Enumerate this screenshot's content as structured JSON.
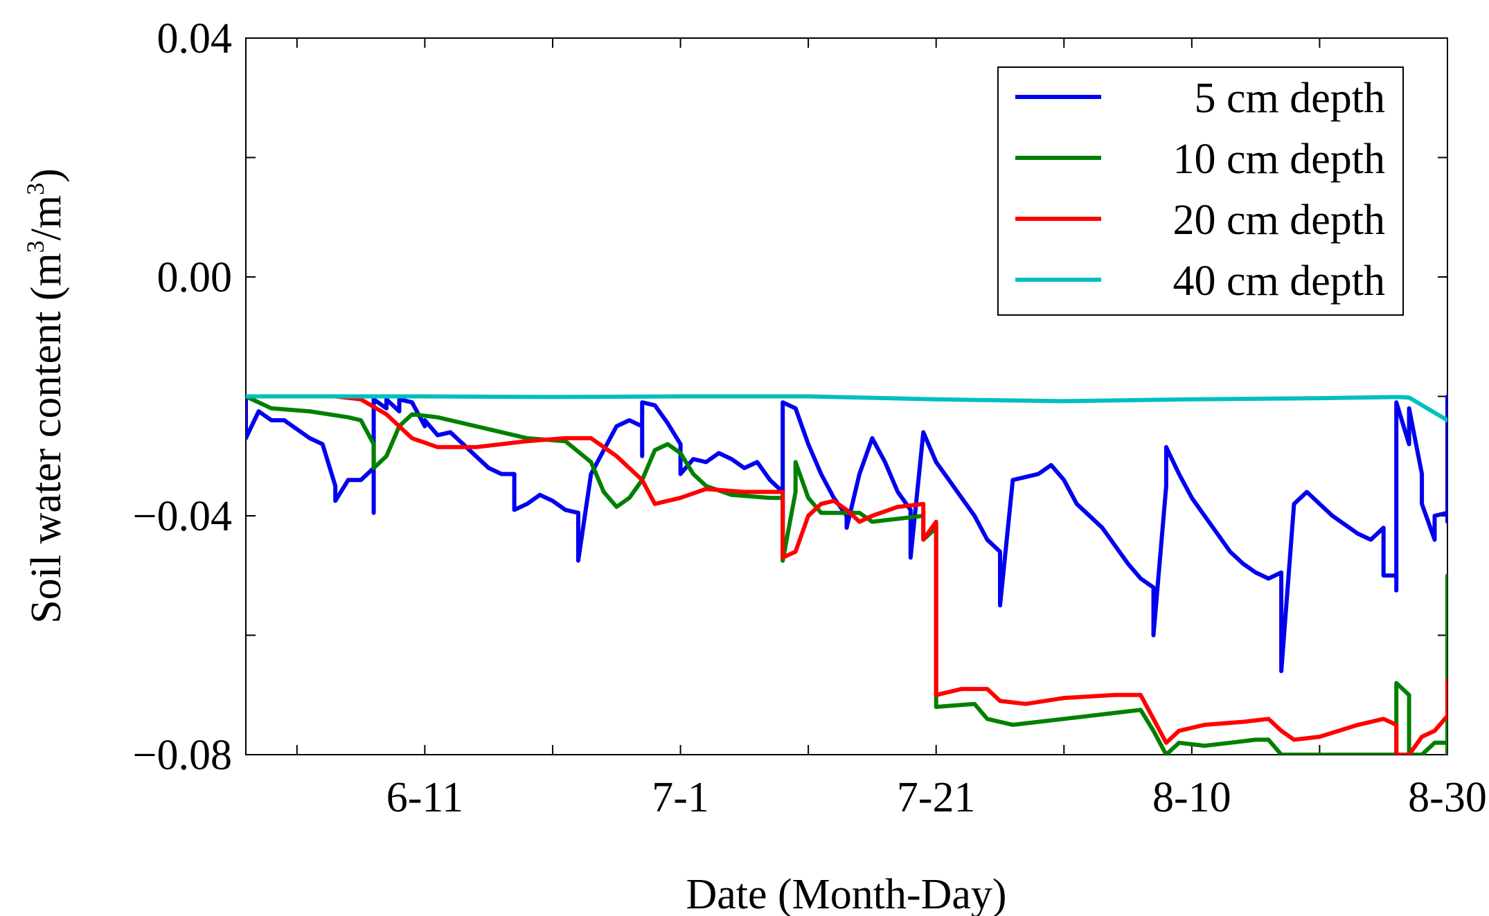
{
  "chart_data": {
    "type": "line",
    "title": "",
    "xlabel": "Date (Month-Day)",
    "ylabel_main": "Soil water content (m",
    "ylabel_sup1": "3",
    "ylabel_mid": "/m",
    "ylabel_sup2": "3",
    "ylabel_end": ")",
    "ylim": [
      -0.08,
      0.04
    ],
    "xlim": [
      "05-28",
      "08-30"
    ],
    "x_ticks": [
      {
        "date": "06-11",
        "label": "6-11"
      },
      {
        "date": "07-01",
        "label": "7-1"
      },
      {
        "date": "07-21",
        "label": "7-21"
      },
      {
        "date": "08-10",
        "label": "8-10"
      },
      {
        "date": "08-30",
        "label": "8-30"
      }
    ],
    "y_ticks": [
      {
        "value": 0.04,
        "label": "0.04"
      },
      {
        "value": 0.0,
        "label": "0.00"
      },
      {
        "value": -0.04,
        "label": "−0.04"
      },
      {
        "value": -0.08,
        "label": "−0.08"
      }
    ],
    "grid": false,
    "legend_position": "top-right",
    "series": [
      {
        "name": "5 cm depth",
        "color": "#0000ee",
        "points": [
          [
            "05-28",
            -0.02
          ],
          [
            "05-28",
            -0.027
          ],
          [
            "05-29",
            -0.0225
          ],
          [
            "05-30",
            -0.024
          ],
          [
            "05-31",
            -0.024
          ],
          [
            "06-01",
            -0.0255
          ],
          [
            "06-02",
            -0.027
          ],
          [
            "06-03",
            -0.028
          ],
          [
            "06-04",
            -0.035
          ],
          [
            "06-04",
            -0.0375
          ],
          [
            "06-05",
            -0.034
          ],
          [
            "06-06",
            -0.034
          ],
          [
            "06-07",
            -0.032
          ],
          [
            "06-07",
            -0.0395
          ],
          [
            "06-07",
            -0.0205
          ],
          [
            "06-08",
            -0.022
          ],
          [
            "06-08",
            -0.0205
          ],
          [
            "06-09",
            -0.0225
          ],
          [
            "06-09",
            -0.0205
          ],
          [
            "06-10",
            -0.021
          ],
          [
            "06-11",
            -0.025
          ],
          [
            "06-11",
            -0.024
          ],
          [
            "06-12",
            -0.0265
          ],
          [
            "06-13",
            -0.026
          ],
          [
            "06-14",
            -0.028
          ],
          [
            "06-15",
            -0.03
          ],
          [
            "06-16",
            -0.032
          ],
          [
            "06-17",
            -0.033
          ],
          [
            "06-18",
            -0.033
          ],
          [
            "06-18",
            -0.039
          ],
          [
            "06-19",
            -0.038
          ],
          [
            "06-20",
            -0.0365
          ],
          [
            "06-21",
            -0.0375
          ],
          [
            "06-22",
            -0.039
          ],
          [
            "06-23",
            -0.0395
          ],
          [
            "06-23",
            -0.0475
          ],
          [
            "06-24",
            -0.033
          ],
          [
            "06-25",
            -0.029
          ],
          [
            "06-26",
            -0.025
          ],
          [
            "06-27",
            -0.024
          ],
          [
            "06-28",
            -0.025
          ],
          [
            "06-28",
            -0.03
          ],
          [
            "06-28",
            -0.021
          ],
          [
            "06-29",
            -0.0215
          ],
          [
            "06-30",
            -0.0245
          ],
          [
            "07-01",
            -0.028
          ],
          [
            "07-01",
            -0.033
          ],
          [
            "07-02",
            -0.0305
          ],
          [
            "07-03",
            -0.031
          ],
          [
            "07-04",
            -0.0295
          ],
          [
            "07-05",
            -0.0305
          ],
          [
            "07-06",
            -0.032
          ],
          [
            "07-07",
            -0.031
          ],
          [
            "07-08",
            -0.034
          ],
          [
            "07-09",
            -0.036
          ],
          [
            "07-09",
            -0.0475
          ],
          [
            "07-09",
            -0.021
          ],
          [
            "07-10",
            -0.022
          ],
          [
            "07-11",
            -0.028
          ],
          [
            "07-12",
            -0.033
          ],
          [
            "07-13",
            -0.037
          ],
          [
            "07-14",
            -0.04
          ],
          [
            "07-14",
            -0.042
          ],
          [
            "07-15",
            -0.033
          ],
          [
            "07-16",
            -0.027
          ],
          [
            "07-17",
            -0.031
          ],
          [
            "07-18",
            -0.036
          ],
          [
            "07-19",
            -0.039
          ],
          [
            "07-19",
            -0.047
          ],
          [
            "07-20",
            -0.026
          ],
          [
            "07-21",
            -0.031
          ],
          [
            "07-22",
            -0.034
          ],
          [
            "07-23",
            -0.037
          ],
          [
            "07-24",
            -0.04
          ],
          [
            "07-25",
            -0.044
          ],
          [
            "07-26",
            -0.046
          ],
          [
            "07-26",
            -0.055
          ],
          [
            "07-27",
            -0.034
          ],
          [
            "07-28",
            -0.0335
          ],
          [
            "07-29",
            -0.033
          ],
          [
            "07-30",
            -0.0315
          ],
          [
            "07-31",
            -0.034
          ],
          [
            "08-01",
            -0.038
          ],
          [
            "08-02",
            -0.04
          ],
          [
            "08-03",
            -0.042
          ],
          [
            "08-04",
            -0.045
          ],
          [
            "08-05",
            -0.048
          ],
          [
            "08-06",
            -0.0505
          ],
          [
            "08-07",
            -0.052
          ],
          [
            "08-07",
            -0.06
          ],
          [
            "08-08",
            -0.035
          ],
          [
            "08-08",
            -0.0285
          ],
          [
            "08-09",
            -0.033
          ],
          [
            "08-10",
            -0.037
          ],
          [
            "08-11",
            -0.04
          ],
          [
            "08-12",
            -0.043
          ],
          [
            "08-13",
            -0.046
          ],
          [
            "08-14",
            -0.048
          ],
          [
            "08-15",
            -0.0495
          ],
          [
            "08-16",
            -0.0505
          ],
          [
            "08-17",
            -0.0495
          ],
          [
            "08-17",
            -0.066
          ],
          [
            "08-18",
            -0.038
          ],
          [
            "08-19",
            -0.036
          ],
          [
            "08-20",
            -0.038
          ],
          [
            "08-21",
            -0.04
          ],
          [
            "08-22",
            -0.0415
          ],
          [
            "08-23",
            -0.043
          ],
          [
            "08-24",
            -0.044
          ],
          [
            "08-25",
            -0.042
          ],
          [
            "08-25",
            -0.05
          ],
          [
            "08-26",
            -0.05
          ],
          [
            "08-26",
            -0.0525
          ],
          [
            "08-26",
            -0.021
          ],
          [
            "08-27",
            -0.028
          ],
          [
            "08-27",
            -0.022
          ],
          [
            "08-28",
            -0.033
          ],
          [
            "08-28",
            -0.038
          ],
          [
            "08-29",
            -0.044
          ],
          [
            "08-29",
            -0.04
          ],
          [
            "08-30",
            -0.0395
          ],
          [
            "08-30",
            -0.041
          ],
          [
            "08-30",
            -0.02
          ]
        ]
      },
      {
        "name": "10 cm depth",
        "color": "#008000",
        "points": [
          [
            "05-28",
            -0.02
          ],
          [
            "05-30",
            -0.022
          ],
          [
            "06-02",
            -0.0225
          ],
          [
            "06-05",
            -0.0235
          ],
          [
            "06-06",
            -0.024
          ],
          [
            "06-07",
            -0.028
          ],
          [
            "06-07",
            -0.032
          ],
          [
            "06-08",
            -0.03
          ],
          [
            "06-09",
            -0.025
          ],
          [
            "06-10",
            -0.023
          ],
          [
            "06-12",
            -0.0235
          ],
          [
            "06-16",
            -0.0255
          ],
          [
            "06-19",
            -0.027
          ],
          [
            "06-22",
            -0.0275
          ],
          [
            "06-24",
            -0.031
          ],
          [
            "06-25",
            -0.036
          ],
          [
            "06-26",
            -0.0385
          ],
          [
            "06-27",
            -0.037
          ],
          [
            "06-28",
            -0.034
          ],
          [
            "06-29",
            -0.029
          ],
          [
            "06-30",
            -0.028
          ],
          [
            "07-01",
            -0.0295
          ],
          [
            "07-02",
            -0.033
          ],
          [
            "07-03",
            -0.035
          ],
          [
            "07-05",
            -0.0365
          ],
          [
            "07-08",
            -0.037
          ],
          [
            "07-09",
            -0.037
          ],
          [
            "07-09",
            -0.0475
          ],
          [
            "07-10",
            -0.036
          ],
          [
            "07-10",
            -0.031
          ],
          [
            "07-11",
            -0.037
          ],
          [
            "07-12",
            -0.0395
          ],
          [
            "07-15",
            -0.0395
          ],
          [
            "07-16",
            -0.041
          ],
          [
            "07-18",
            -0.0405
          ],
          [
            "07-20",
            -0.04
          ],
          [
            "07-20",
            -0.044
          ],
          [
            "07-21",
            -0.042
          ],
          [
            "07-21",
            -0.072
          ],
          [
            "07-24",
            -0.0715
          ],
          [
            "07-25",
            -0.074
          ],
          [
            "07-27",
            -0.075
          ],
          [
            "07-31",
            -0.074
          ],
          [
            "08-04",
            -0.073
          ],
          [
            "08-06",
            -0.0725
          ],
          [
            "08-07",
            -0.076
          ],
          [
            "08-08",
            -0.08
          ],
          [
            "08-09",
            -0.078
          ],
          [
            "08-11",
            -0.0785
          ],
          [
            "08-13",
            -0.078
          ],
          [
            "08-15",
            -0.0775
          ],
          [
            "08-16",
            -0.0775
          ],
          [
            "08-17",
            -0.08
          ],
          [
            "08-24",
            -0.08
          ],
          [
            "08-26",
            -0.08
          ],
          [
            "08-26",
            -0.068
          ],
          [
            "08-27",
            -0.07
          ],
          [
            "08-27",
            -0.08
          ],
          [
            "08-28",
            -0.08
          ],
          [
            "08-29",
            -0.078
          ],
          [
            "08-30",
            -0.078
          ],
          [
            "08-30",
            -0.08
          ],
          [
            "08-30",
            -0.05
          ]
        ]
      },
      {
        "name": "20 cm depth",
        "color": "#ff0000",
        "points": [
          [
            "05-28",
            -0.02
          ],
          [
            "06-04",
            -0.02
          ],
          [
            "06-06",
            -0.0205
          ],
          [
            "06-08",
            -0.023
          ],
          [
            "06-10",
            -0.027
          ],
          [
            "06-12",
            -0.0285
          ],
          [
            "06-15",
            -0.0285
          ],
          [
            "06-19",
            -0.0275
          ],
          [
            "06-22",
            -0.027
          ],
          [
            "06-24",
            -0.027
          ],
          [
            "06-26",
            -0.03
          ],
          [
            "06-28",
            -0.034
          ],
          [
            "06-29",
            -0.038
          ],
          [
            "07-01",
            -0.037
          ],
          [
            "07-03",
            -0.0355
          ],
          [
            "07-06",
            -0.036
          ],
          [
            "07-09",
            -0.036
          ],
          [
            "07-09",
            -0.047
          ],
          [
            "07-10",
            -0.046
          ],
          [
            "07-11",
            -0.04
          ],
          [
            "07-12",
            -0.038
          ],
          [
            "07-13",
            -0.0375
          ],
          [
            "07-14",
            -0.039
          ],
          [
            "07-15",
            -0.041
          ],
          [
            "07-16",
            -0.04
          ],
          [
            "07-18",
            -0.0385
          ],
          [
            "07-20",
            -0.038
          ],
          [
            "07-20",
            -0.044
          ],
          [
            "07-21",
            -0.041
          ],
          [
            "07-21",
            -0.07
          ],
          [
            "07-23",
            -0.069
          ],
          [
            "07-25",
            -0.069
          ],
          [
            "07-26",
            -0.071
          ],
          [
            "07-28",
            -0.0715
          ],
          [
            "07-31",
            -0.0705
          ],
          [
            "08-04",
            -0.07
          ],
          [
            "08-06",
            -0.07
          ],
          [
            "08-07",
            -0.074
          ],
          [
            "08-08",
            -0.078
          ],
          [
            "08-09",
            -0.076
          ],
          [
            "08-11",
            -0.075
          ],
          [
            "08-14",
            -0.0745
          ],
          [
            "08-16",
            -0.074
          ],
          [
            "08-17",
            -0.076
          ],
          [
            "08-18",
            -0.0775
          ],
          [
            "08-20",
            -0.077
          ],
          [
            "08-23",
            -0.075
          ],
          [
            "08-25",
            -0.074
          ],
          [
            "08-26",
            -0.075
          ],
          [
            "08-26",
            -0.08
          ],
          [
            "08-27",
            -0.08
          ],
          [
            "08-28",
            -0.077
          ],
          [
            "08-29",
            -0.076
          ],
          [
            "08-30",
            -0.0735
          ],
          [
            "08-30",
            -0.0675
          ]
        ]
      },
      {
        "name": "40 cm depth",
        "color": "#00bfbf",
        "points": [
          [
            "05-28",
            -0.02
          ],
          [
            "06-11",
            -0.02
          ],
          [
            "06-21",
            -0.0201
          ],
          [
            "07-01",
            -0.02
          ],
          [
            "07-11",
            -0.02
          ],
          [
            "07-21",
            -0.0205
          ],
          [
            "07-31",
            -0.0208
          ],
          [
            "08-10",
            -0.0205
          ],
          [
            "08-20",
            -0.0203
          ],
          [
            "08-26",
            -0.0201
          ],
          [
            "08-27",
            -0.0202
          ],
          [
            "08-30",
            -0.024
          ]
        ]
      }
    ]
  }
}
